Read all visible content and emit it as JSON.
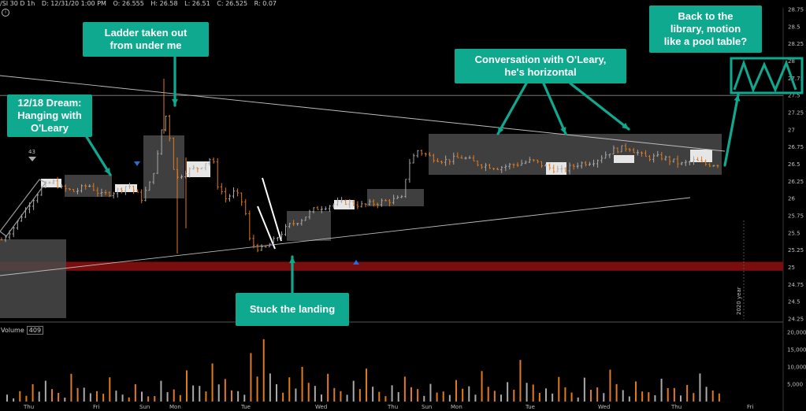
{
  "header": {
    "symbol": "/SI 30 D 1h",
    "date": "D: 12/31/20 1:00 PM",
    "open": "O: 26.555",
    "high": "H: 26.58",
    "low": "L: 26.51",
    "close": "C: 26.525",
    "range": "R: 0.07"
  },
  "info_icon": "i",
  "volume_label": "Volume",
  "volume_value": "409",
  "annotations": {
    "dream": "12/18 Dream:\nHanging with\nO'Leary",
    "ladder": "Ladder taken out\nfrom under me",
    "conversation": "Conversation with O'Leary,\nhe's horizontal",
    "library": "Back to the\nlibrary, motion\nlike a pool table?",
    "landing": "Stuck the landing"
  },
  "marker_43": "43",
  "year_label": "2020 year",
  "colors": {
    "up": "#a9a9a9",
    "down": "#e07a1f",
    "callout": "#0fa98f",
    "support_band": "#7a0d0d",
    "box": "#4a4a4a",
    "light_box": "#e6e6e6"
  },
  "chart_data": {
    "type": "candlestick",
    "price_axis": {
      "min": 24.25,
      "max": 28.75,
      "ticks": [
        "28.75",
        "28.5",
        "28.25",
        "28",
        "27.75",
        "27.5",
        "27.25",
        "27",
        "26.75",
        "26.5",
        "26.25",
        "26",
        "25.75",
        "25.5",
        "25.25",
        "25",
        "24.75",
        "24.5",
        "24.25"
      ]
    },
    "volume_axis": {
      "min": 0,
      "max": 20000,
      "ticks": [
        "20,000",
        "15,000",
        "10,000",
        "5,000"
      ]
    },
    "x_labels": [
      "Thu",
      "Fri",
      "Sun",
      "Mon",
      "Tue",
      "Wed",
      "Thu",
      "Sun",
      "Mon",
      "Tue",
      "Wed",
      "Thu",
      "Fri"
    ],
    "horizontal_line": 27.5,
    "support_band": [
      24.95,
      25.08
    ],
    "price_path": [
      [
        0,
        25.4
      ],
      [
        10,
        25.6
      ],
      [
        20,
        25.9
      ],
      [
        30,
        26.15
      ],
      [
        38,
        26.25
      ],
      [
        45,
        26.15
      ],
      [
        55,
        26.1
      ],
      [
        65,
        26.2
      ],
      [
        75,
        26.05
      ],
      [
        85,
        26.1
      ],
      [
        95,
        26.2
      ],
      [
        105,
        26.0
      ],
      [
        112,
        26.25
      ],
      [
        118,
        26.7
      ],
      [
        122,
        27.3
      ],
      [
        126,
        26.9
      ],
      [
        128,
        26.5
      ],
      [
        132,
        26.3
      ],
      [
        138,
        26.4
      ],
      [
        148,
        26.45
      ],
      [
        158,
        26.6
      ],
      [
        162,
        26.2
      ],
      [
        168,
        26.0
      ],
      [
        175,
        26.1
      ],
      [
        182,
        25.9
      ],
      [
        186,
        25.4
      ],
      [
        190,
        25.3
      ],
      [
        196,
        25.25
      ],
      [
        205,
        25.4
      ],
      [
        215,
        25.6
      ],
      [
        225,
        25.7
      ],
      [
        235,
        25.85
      ],
      [
        245,
        25.9
      ],
      [
        258,
        25.95
      ],
      [
        270,
        25.9
      ],
      [
        285,
        25.95
      ],
      [
        300,
        26.0
      ],
      [
        305,
        26.5
      ],
      [
        312,
        26.7
      ],
      [
        322,
        26.6
      ],
      [
        332,
        26.55
      ],
      [
        345,
        26.6
      ],
      [
        358,
        26.5
      ],
      [
        372,
        26.45
      ],
      [
        386,
        26.5
      ],
      [
        398,
        26.55
      ],
      [
        410,
        26.45
      ],
      [
        420,
        26.4
      ],
      [
        432,
        26.5
      ],
      [
        445,
        26.55
      ],
      [
        458,
        26.7
      ],
      [
        470,
        26.75
      ],
      [
        482,
        26.6
      ],
      [
        495,
        26.6
      ],
      [
        510,
        26.5
      ],
      [
        520,
        26.55
      ],
      [
        528,
        26.5
      ]
    ],
    "volume_values": [
      2000,
      3000,
      5000,
      6000,
      2500,
      8000,
      4000,
      3000,
      7000,
      2000,
      5000,
      1500,
      6000,
      3500,
      9000,
      4500,
      11000,
      6500,
      3000,
      14000,
      18000,
      5000,
      7000,
      10000,
      4500,
      8000,
      3000,
      6000,
      9500,
      2800,
      4700,
      7200,
      3600,
      5100,
      2900,
      6200,
      4400,
      8800,
      3100,
      5600,
      12000,
      4900,
      3800,
      7100,
      2600,
      6900,
      4100,
      9200,
      3300,
      5800,
      2700,
      6600,
      3900,
      4800,
      8100,
      3200
    ]
  }
}
